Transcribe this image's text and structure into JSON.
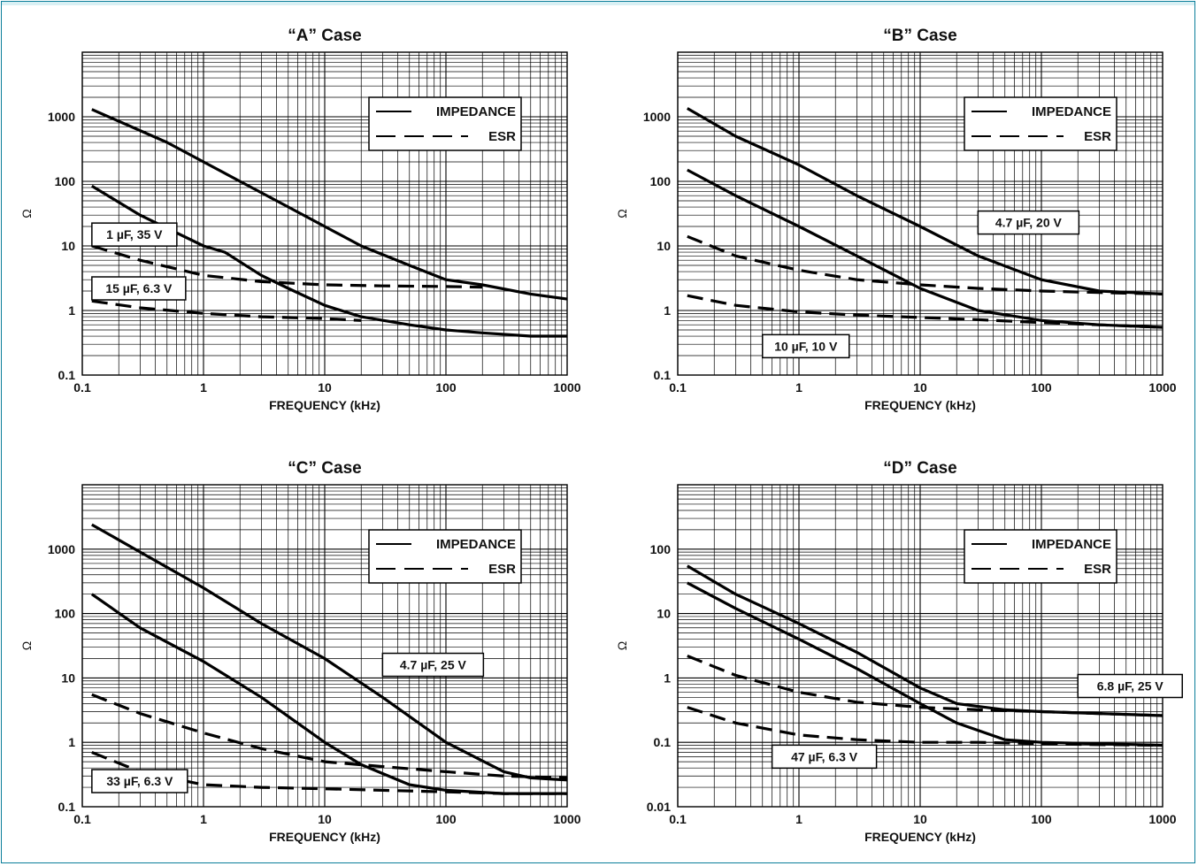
{
  "legend": {
    "impedance": "IMPEDANCE",
    "esr": "ESR"
  },
  "chart_data": [
    {
      "type": "line",
      "title": "“A” Case",
      "xlabel": "FREQUENCY (kHz)",
      "ylabel": "Ω",
      "xscale": "log",
      "yscale": "log",
      "xlim": [
        0.1,
        1000
      ],
      "ylim": [
        0.1,
        10000
      ],
      "xticks": [
        "0.1",
        "1",
        "10",
        "100",
        "1000"
      ],
      "yticks": [
        "0.1",
        "1",
        "10",
        "100",
        "1000"
      ],
      "legend_position": "top-right",
      "grid": true,
      "annotations": [
        {
          "text": "1 µF, 35 V",
          "x": 0.12,
          "y": 15
        },
        {
          "text": "15 µF, 6.3 V",
          "x": 0.12,
          "y": 2.2
        }
      ],
      "series": [
        {
          "style": "impedance",
          "x": [
            0.12,
            0.5,
            1,
            2,
            5,
            10,
            20,
            50,
            100,
            200,
            500,
            1000
          ],
          "y": [
            1300,
            400,
            200,
            100,
            40,
            20,
            10,
            5,
            3,
            2.5,
            1.8,
            1.5
          ]
        },
        {
          "style": "esr",
          "x": [
            0.12,
            0.3,
            1,
            3,
            10,
            30,
            100,
            200
          ],
          "y": [
            10,
            6,
            3.5,
            2.8,
            2.5,
            2.4,
            2.35,
            2.3
          ]
        },
        {
          "style": "impedance",
          "x": [
            0.12,
            0.3,
            1,
            1.5,
            3,
            5,
            10,
            20,
            50,
            100,
            200,
            500,
            1000
          ],
          "y": [
            85,
            30,
            10,
            8,
            3.5,
            2.2,
            1.2,
            0.8,
            0.6,
            0.5,
            0.45,
            0.4,
            0.4
          ]
        },
        {
          "style": "esr",
          "x": [
            0.12,
            0.3,
            1,
            3,
            10,
            20
          ],
          "y": [
            1.4,
            1.1,
            0.9,
            0.8,
            0.75,
            0.7
          ]
        }
      ]
    },
    {
      "type": "line",
      "title": "“B” Case",
      "xlabel": "FREQUENCY (kHz)",
      "ylabel": "Ω",
      "xscale": "log",
      "yscale": "log",
      "xlim": [
        0.1,
        1000
      ],
      "ylim": [
        0.1,
        10000
      ],
      "xticks": [
        "0.1",
        "1",
        "10",
        "100",
        "1000"
      ],
      "yticks": [
        "0.1",
        "1",
        "10",
        "100",
        "1000"
      ],
      "legend_position": "top-right",
      "grid": true,
      "annotations": [
        {
          "text": "4.7 µF, 20 V",
          "x": 30,
          "y": 23
        },
        {
          "text": "10 µF, 10 V",
          "x": 0.5,
          "y": 0.28
        }
      ],
      "series": [
        {
          "style": "impedance",
          "x": [
            0.12,
            0.3,
            1,
            3,
            10,
            30,
            100,
            300,
            1000
          ],
          "y": [
            1350,
            500,
            180,
            60,
            20,
            7,
            3,
            2,
            1.8
          ]
        },
        {
          "style": "esr",
          "x": [
            0.12,
            0.3,
            1,
            3,
            10,
            30,
            100,
            300,
            1000
          ],
          "y": [
            14,
            7,
            4.2,
            3,
            2.5,
            2.2,
            2,
            1.9,
            1.8
          ]
        },
        {
          "style": "impedance",
          "x": [
            0.12,
            0.3,
            1,
            3,
            10,
            30,
            100,
            300,
            1000
          ],
          "y": [
            150,
            60,
            20,
            7,
            2.2,
            1,
            0.7,
            0.6,
            0.55
          ]
        },
        {
          "style": "esr",
          "x": [
            0.12,
            0.3,
            1,
            3,
            10,
            30,
            100,
            300,
            1000
          ],
          "y": [
            1.7,
            1.2,
            0.95,
            0.85,
            0.78,
            0.72,
            0.65,
            0.6,
            0.55
          ]
        }
      ]
    },
    {
      "type": "line",
      "title": "“C” Case",
      "xlabel": "FREQUENCY (kHz)",
      "ylabel": "Ω",
      "xscale": "log",
      "yscale": "log",
      "xlim": [
        0.1,
        1000
      ],
      "ylim": [
        0.1,
        10000
      ],
      "xticks": [
        "0.1",
        "1",
        "10",
        "100",
        "1000"
      ],
      "yticks": [
        "0.1",
        "1",
        "10",
        "100",
        "1000"
      ],
      "legend_position": "top-right",
      "grid": true,
      "annotations": [
        {
          "text": "4.7 µF, 25 V",
          "x": 30,
          "y": 16
        },
        {
          "text": "33 µF, 6.3 V",
          "x": 0.12,
          "y": 0.25
        }
      ],
      "series": [
        {
          "style": "impedance",
          "x": [
            0.12,
            0.3,
            1,
            3,
            10,
            30,
            100,
            300,
            500,
            1000
          ],
          "y": [
            2400,
            900,
            250,
            70,
            20,
            5,
            1,
            0.35,
            0.28,
            0.26
          ]
        },
        {
          "style": "esr",
          "x": [
            0.12,
            0.3,
            1,
            3,
            10,
            30,
            100,
            300,
            1000
          ],
          "y": [
            5.5,
            2.8,
            1.4,
            0.8,
            0.5,
            0.42,
            0.35,
            0.3,
            0.28
          ]
        },
        {
          "style": "impedance",
          "x": [
            0.12,
            0.3,
            1,
            3,
            10,
            20,
            50,
            100,
            300,
            1000
          ],
          "y": [
            200,
            60,
            18,
            5,
            1,
            0.45,
            0.22,
            0.18,
            0.16,
            0.16
          ]
        },
        {
          "style": "esr",
          "x": [
            0.12,
            0.3,
            1,
            3,
            10,
            30,
            100,
            300,
            1000
          ],
          "y": [
            0.7,
            0.35,
            0.22,
            0.2,
            0.19,
            0.18,
            0.17,
            0.16,
            0.16
          ]
        }
      ]
    },
    {
      "type": "line",
      "title": "“D” Case",
      "xlabel": "FREQUENCY (kHz)",
      "ylabel": "Ω",
      "xscale": "log",
      "yscale": "log",
      "xlim": [
        0.1,
        1000
      ],
      "ylim": [
        0.01,
        1000
      ],
      "xticks": [
        "0.1",
        "1",
        "10",
        "100",
        "1000"
      ],
      "yticks": [
        "0.01",
        "0.1",
        "1",
        "10",
        "100"
      ],
      "legend_position": "top-right",
      "grid": true,
      "annotations": [
        {
          "text": "6.8 µF, 25 V",
          "x": 200,
          "y": 0.75
        },
        {
          "text": "47 µF, 6.3 V",
          "x": 0.6,
          "y": 0.06
        }
      ],
      "series": [
        {
          "style": "impedance",
          "x": [
            0.12,
            0.3,
            1,
            3,
            10,
            20,
            50,
            100,
            300,
            1000
          ],
          "y": [
            55,
            20,
            7,
            2.5,
            0.7,
            0.4,
            0.32,
            0.3,
            0.28,
            0.26
          ]
        },
        {
          "style": "esr",
          "x": [
            0.12,
            0.3,
            1,
            3,
            10,
            30,
            100,
            300,
            1000
          ],
          "y": [
            2.2,
            1.1,
            0.6,
            0.42,
            0.35,
            0.32,
            0.3,
            0.28,
            0.26
          ]
        },
        {
          "style": "impedance",
          "x": [
            0.12,
            0.3,
            1,
            3,
            10,
            20,
            50,
            100,
            300,
            1000
          ],
          "y": [
            30,
            12,
            4,
            1.4,
            0.4,
            0.2,
            0.11,
            0.1,
            0.095,
            0.09
          ]
        },
        {
          "style": "esr",
          "x": [
            0.12,
            0.3,
            1,
            3,
            10,
            30,
            100,
            300,
            1000
          ],
          "y": [
            0.35,
            0.2,
            0.13,
            0.11,
            0.1,
            0.1,
            0.095,
            0.092,
            0.09
          ]
        }
      ]
    }
  ]
}
